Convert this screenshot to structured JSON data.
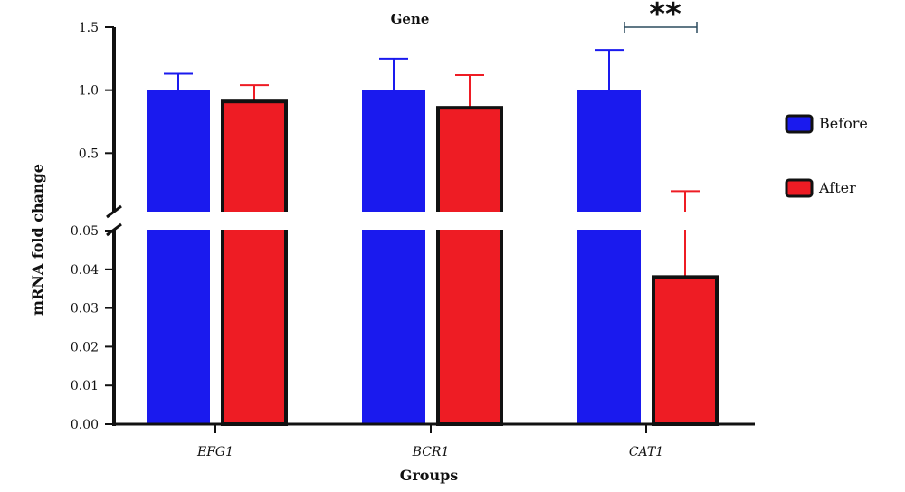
{
  "chart_data": {
    "type": "bar",
    "title": "Gene",
    "xlabel": "Groups",
    "ylabel": "mRNA fold change",
    "categories": [
      "EFG1",
      "BCR1",
      "CAT1"
    ],
    "series": [
      {
        "name": "Before",
        "color": "#1a1aee",
        "values": [
          1.0,
          1.0,
          1.0
        ],
        "error": [
          0.13,
          0.25,
          0.32
        ]
      },
      {
        "name": "After",
        "color": "#ee1c24",
        "values": [
          0.91,
          0.86,
          0.038
        ],
        "error": [
          0.13,
          0.26,
          0.16
        ]
      }
    ],
    "y_axis": {
      "broken": true,
      "lower_segment": {
        "range": [
          0,
          0.05
        ],
        "ticks": [
          "0.00",
          "0.01",
          "0.02",
          "0.03",
          "0.04",
          "0.05"
        ]
      },
      "upper_segment": {
        "range": [
          0.05,
          1.5
        ],
        "ticks": [
          "0.5",
          "1.0",
          "1.5"
        ]
      }
    },
    "significance": {
      "category": "CAT1",
      "label": "**"
    },
    "legend": {
      "placement": "right"
    },
    "grid": false
  }
}
